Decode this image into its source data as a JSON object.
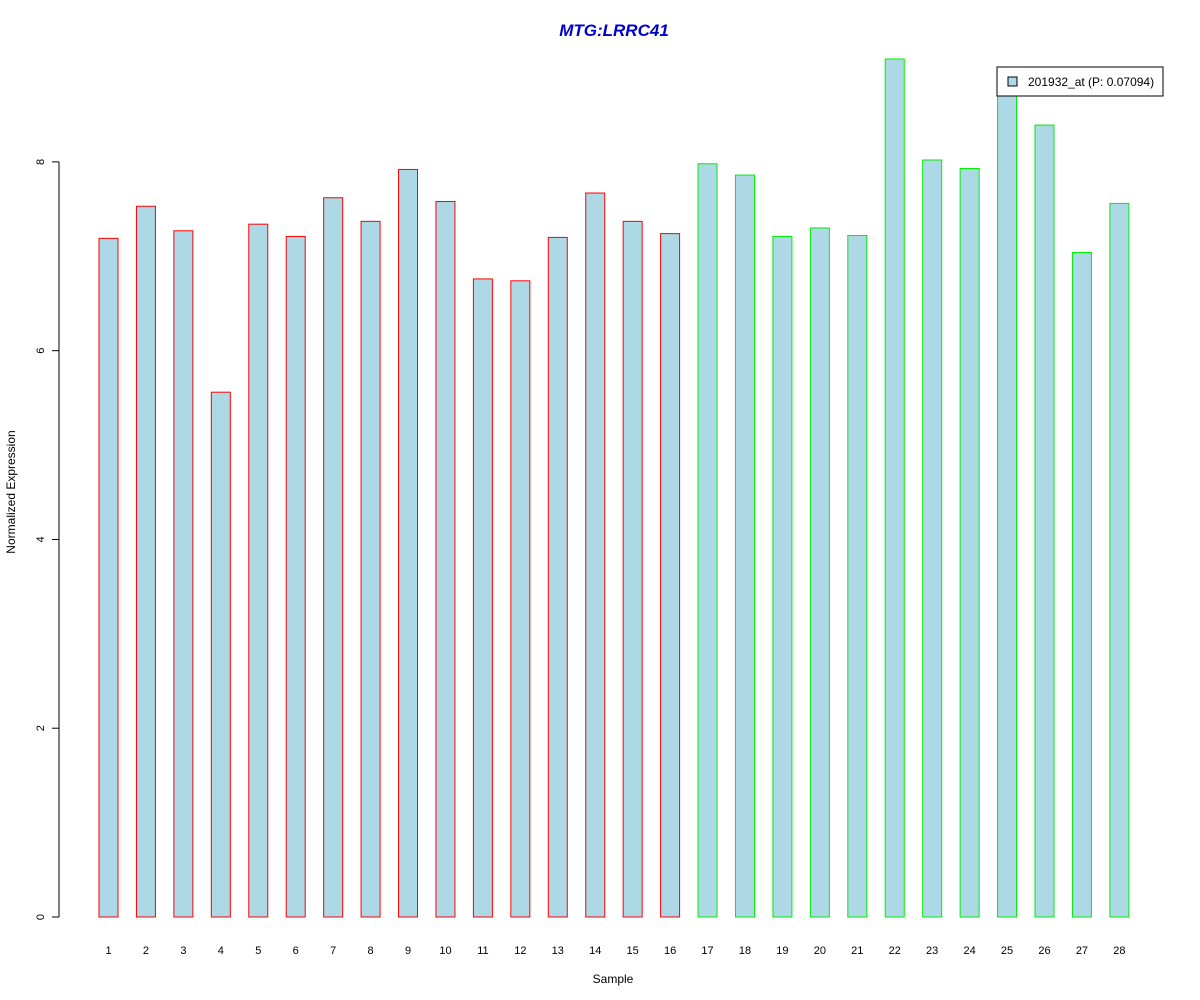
{
  "chart_data": {
    "type": "bar",
    "title": "MTG:LRRC41",
    "xlabel": "Sample",
    "ylabel": "Normalized Expression",
    "categories": [
      "1",
      "2",
      "3",
      "4",
      "5",
      "6",
      "7",
      "8",
      "9",
      "10",
      "11",
      "12",
      "13",
      "14",
      "15",
      "16",
      "17",
      "18",
      "19",
      "20",
      "21",
      "22",
      "23",
      "24",
      "25",
      "26",
      "27",
      "28"
    ],
    "series": [
      {
        "name": "201932_at (P: 0.07094)",
        "values": [
          7.19,
          7.53,
          7.27,
          5.56,
          7.34,
          7.21,
          7.62,
          7.37,
          7.92,
          7.58,
          6.76,
          6.74,
          7.2,
          7.67,
          7.37,
          7.24,
          7.98,
          7.86,
          7.21,
          7.3,
          7.22,
          9.09,
          8.02,
          7.93,
          8.72,
          8.39,
          7.04,
          7.56
        ]
      }
    ],
    "groups": [
      {
        "samples": [
          1,
          16
        ],
        "border_color": "#ff0000"
      },
      {
        "samples": [
          17,
          28
        ],
        "border_color": "#00ee00"
      }
    ],
    "ylim": [
      0,
      9.09
    ],
    "yticks": [
      0,
      2,
      4,
      6,
      8
    ],
    "fill_color": "#add8e6",
    "title_color": "#0000cc",
    "legend_position": "top-right",
    "grid": false
  }
}
